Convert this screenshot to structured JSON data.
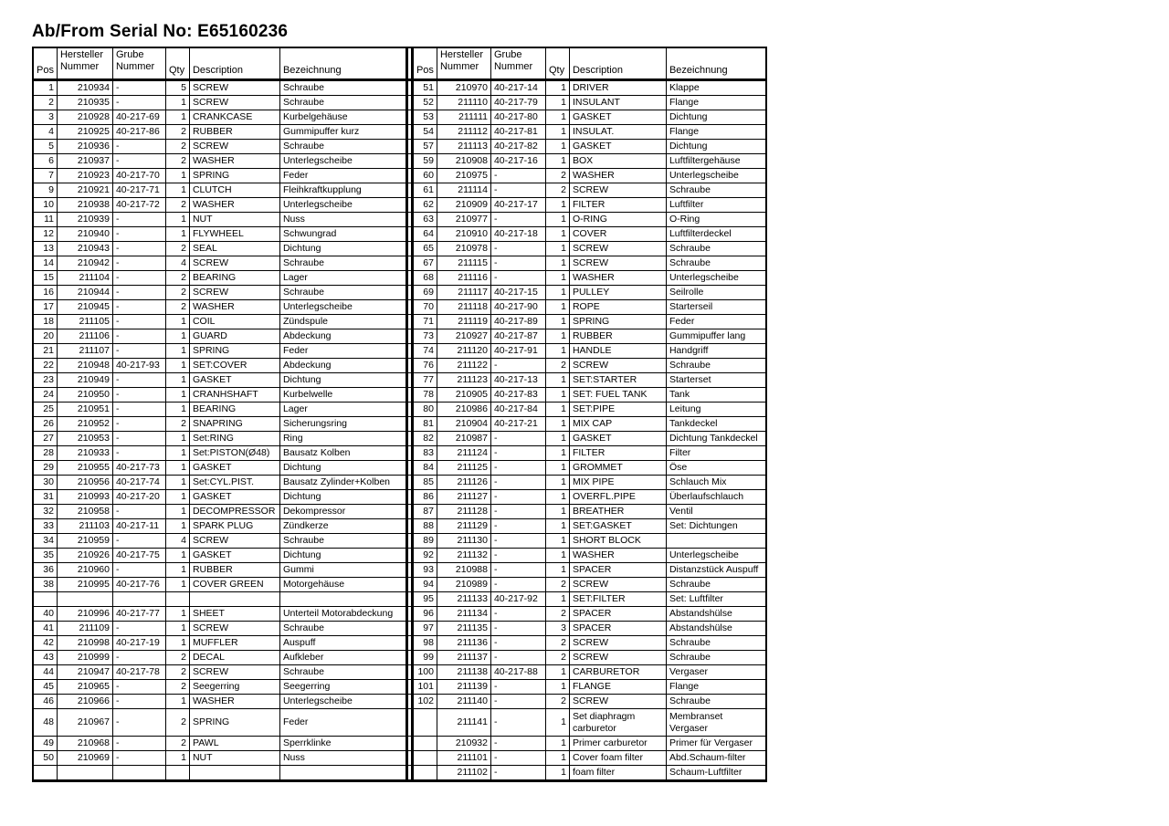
{
  "title": "Ab/From Serial No: E65160236",
  "colors": {
    "background": "#ffffff",
    "text": "#000000",
    "border": "#000000"
  },
  "table": {
    "headers": {
      "pos": "Pos",
      "hersteller": "Hersteller\nNummer",
      "grube": "Grube\nNummer",
      "qty": "Qty",
      "description": "Description",
      "bezeichnung": "Bezeichnung"
    },
    "tall_row_index": 43,
    "rows": [
      [
        "1",
        "210934",
        "-",
        "5",
        "SCREW",
        "Schraube",
        "51",
        "210970",
        "40-217-14",
        "1",
        "DRIVER",
        "Klappe"
      ],
      [
        "2",
        "210935",
        "-",
        "1",
        "SCREW",
        "Schraube",
        "52",
        "211110",
        "40-217-79",
        "1",
        "INSULANT",
        "Flange"
      ],
      [
        "3",
        "210928",
        "40-217-69",
        "1",
        "CRANKCASE",
        "Kurbelgehäuse",
        "53",
        "211111",
        "40-217-80",
        "1",
        "GASKET",
        "Dichtung"
      ],
      [
        "4",
        "210925",
        "40-217-86",
        "2",
        "RUBBER",
        "Gummipuffer kurz",
        "54",
        "211112",
        "40-217-81",
        "1",
        "INSULAT.",
        "Flange"
      ],
      [
        "5",
        "210936",
        "-",
        "2",
        "SCREW",
        "Schraube",
        "57",
        "211113",
        "40-217-82",
        "1",
        "GASKET",
        "Dichtung"
      ],
      [
        "6",
        "210937",
        "-",
        "2",
        "WASHER",
        "Unterlegscheibe",
        "59",
        "210908",
        "40-217-16",
        "1",
        "BOX",
        "Luftfiltergehäuse"
      ],
      [
        "7",
        "210923",
        "40-217-70",
        "1",
        "SPRING",
        "Feder",
        "60",
        "210975",
        "-",
        "2",
        "WASHER",
        "Unterlegscheibe"
      ],
      [
        "9",
        "210921",
        "40-217-71",
        "1",
        "CLUTCH",
        "Fleihkraftkupplung",
        "61",
        "211114",
        "-",
        "2",
        "SCREW",
        "Schraube"
      ],
      [
        "10",
        "210938",
        "40-217-72",
        "2",
        "WASHER",
        "Unterlegscheibe",
        "62",
        "210909",
        "40-217-17",
        "1",
        "FILTER",
        "Luftfilter"
      ],
      [
        "11",
        "210939",
        "-",
        "1",
        "NUT",
        "Nuss",
        "63",
        "210977",
        "-",
        "1",
        "O-RING",
        "O-Ring"
      ],
      [
        "12",
        "210940",
        "-",
        "1",
        "FLYWHEEL",
        "Schwungrad",
        "64",
        "210910",
        "40-217-18",
        "1",
        "COVER",
        "Luftfilterdeckel"
      ],
      [
        "13",
        "210943",
        "-",
        "2",
        "SEAL",
        "Dichtung",
        "65",
        "210978",
        "-",
        "1",
        "SCREW",
        "Schraube"
      ],
      [
        "14",
        "210942",
        "-",
        "4",
        "SCREW",
        "Schraube",
        "67",
        "211115",
        "-",
        "1",
        "SCREW",
        "Schraube"
      ],
      [
        "15",
        "211104",
        "-",
        "2",
        "BEARING",
        "Lager",
        "68",
        "211116",
        "-",
        "1",
        "WASHER",
        "Unterlegscheibe"
      ],
      [
        "16",
        "210944",
        "-",
        "2",
        "SCREW",
        "Schraube",
        "69",
        "211117",
        "40-217-15",
        "1",
        "PULLEY",
        "Seilrolle"
      ],
      [
        "17",
        "210945",
        "-",
        "2",
        "WASHER",
        "Unterlegscheibe",
        "70",
        "211118",
        "40-217-90",
        "1",
        "ROPE",
        "Starterseil"
      ],
      [
        "18",
        "211105",
        "-",
        "1",
        "COIL",
        "Zündspule",
        "71",
        "211119",
        "40-217-89",
        "1",
        "SPRING",
        "Feder"
      ],
      [
        "20",
        "211106",
        "-",
        "1",
        "GUARD",
        "Abdeckung",
        "73",
        "210927",
        "40-217-87",
        "1",
        "RUBBER",
        "Gummipuffer lang"
      ],
      [
        "21",
        "211107",
        "-",
        "1",
        "SPRING",
        "Feder",
        "74",
        "211120",
        "40-217-91",
        "1",
        "HANDLE",
        "Handgriff"
      ],
      [
        "22",
        "210948",
        "40-217-93",
        "1",
        "SET:COVER",
        "Abdeckung",
        "76",
        "211122",
        "-",
        "2",
        "SCREW",
        "Schraube"
      ],
      [
        "23",
        "210949",
        "-",
        "1",
        "GASKET",
        "Dichtung",
        "77",
        "211123",
        "40-217-13",
        "1",
        "SET:STARTER",
        "Starterset"
      ],
      [
        "24",
        "210950",
        "-",
        "1",
        "CRANHSHAFT",
        "Kurbelwelle",
        "78",
        "210905",
        "40-217-83",
        "1",
        "SET: FUEL TANK",
        "Tank"
      ],
      [
        "25",
        "210951",
        "-",
        "1",
        "BEARING",
        "Lager",
        "80",
        "210986",
        "40-217-84",
        "1",
        "SET:PIPE",
        "Leitung"
      ],
      [
        "26",
        "210952",
        "-",
        "2",
        "SNAPRING",
        "Sicherungsring",
        "81",
        "210904",
        "40-217-21",
        "1",
        "MIX CAP",
        "Tankdeckel"
      ],
      [
        "27",
        "210953",
        "-",
        "1",
        "Set:RING",
        "Ring",
        "82",
        "210987",
        "-",
        "1",
        "GASKET",
        "Dichtung Tankdeckel"
      ],
      [
        "28",
        "210933",
        "-",
        "1",
        "Set:PISTON(Ø48)",
        "Bausatz Kolben",
        "83",
        "211124",
        "-",
        "1",
        "FILTER",
        "Filter"
      ],
      [
        "29",
        "210955",
        "40-217-73",
        "1",
        "GASKET",
        "Dichtung",
        "84",
        "211125",
        "-",
        "1",
        "GROMMET",
        "Öse"
      ],
      [
        "30",
        "210956",
        "40-217-74",
        "1",
        "Set:CYL.PIST.",
        "Bausatz Zylinder+Kolben",
        "85",
        "211126",
        "-",
        "1",
        "MIX PIPE",
        "Schlauch Mix"
      ],
      [
        "31",
        "210993",
        "40-217-20",
        "1",
        "GASKET",
        "Dichtung",
        "86",
        "211127",
        "-",
        "1",
        "OVERFL.PIPE",
        "Überlaufschlauch"
      ],
      [
        "32",
        "210958",
        "-",
        "1",
        "DECOMPRESSOR",
        "Dekompressor",
        "87",
        "211128",
        "-",
        "1",
        "BREATHER",
        "Ventil"
      ],
      [
        "33",
        "211103",
        "40-217-11",
        "1",
        "SPARK PLUG",
        "Zündkerze",
        "88",
        "211129",
        "-",
        "1",
        "SET:GASKET",
        "Set: Dichtungen"
      ],
      [
        "34",
        "210959",
        "-",
        "4",
        "SCREW",
        "Schraube",
        "89",
        "211130",
        "-",
        "1",
        "SHORT BLOCK",
        ""
      ],
      [
        "35",
        "210926",
        "40-217-75",
        "1",
        "GASKET",
        "Dichtung",
        "92",
        "211132",
        "-",
        "1",
        "WASHER",
        "Unterlegscheibe"
      ],
      [
        "36",
        "210960",
        "-",
        "1",
        "RUBBER",
        "Gummi",
        "93",
        "210988",
        "-",
        "1",
        "SPACER",
        "Distanzstück Auspuff"
      ],
      [
        "38",
        "210995",
        "40-217-76",
        "1",
        "COVER GREEN",
        "Motorgehäuse",
        "94",
        "210989",
        "-",
        "2",
        "SCREW",
        "Schraube"
      ],
      [
        "",
        "",
        "",
        "",
        "",
        "",
        "95",
        "211133",
        "40-217-92",
        "1",
        "SET:FILTER",
        "Set: Luftfilter"
      ],
      [
        "40",
        "210996",
        "40-217-77",
        "1",
        "SHEET",
        "Unterteil Motorabdeckung",
        "96",
        "211134",
        "-",
        "2",
        "SPACER",
        "Abstandshülse"
      ],
      [
        "41",
        "211109",
        "-",
        "1",
        "SCREW",
        "Schraube",
        "97",
        "211135",
        "-",
        "3",
        "SPACER",
        "Abstandshülse"
      ],
      [
        "42",
        "210998",
        "40-217-19",
        "1",
        "MUFFLER",
        "Auspuff",
        "98",
        "211136",
        "-",
        "2",
        "SCREW",
        "Schraube"
      ],
      [
        "43",
        "210999",
        "-",
        "2",
        "DECAL",
        "Aufkleber",
        "99",
        "211137",
        "-",
        "2",
        "SCREW",
        "Schraube"
      ],
      [
        "44",
        "210947",
        "40-217-78",
        "2",
        "SCREW",
        "Schraube",
        "100",
        "211138",
        "40-217-88",
        "1",
        "CARBURETOR",
        "Vergaser"
      ],
      [
        "45",
        "210965",
        "-",
        "2",
        "Seegerring",
        "Seegerring",
        "101",
        "211139",
        "-",
        "1",
        "FLANGE",
        "Flange"
      ],
      [
        "46",
        "210966",
        "-",
        "1",
        "WASHER",
        "Unterlegscheibe",
        "102",
        "211140",
        "-",
        "2",
        "SCREW",
        "Schraube"
      ],
      [
        "48",
        "210967",
        "-",
        "2",
        "SPRING",
        "Feder",
        "",
        "211141",
        "-",
        "1",
        "Set diaphragm carburetor",
        "Membranset\n Vergaser"
      ],
      [
        "49",
        "210968",
        "-",
        "2",
        "PAWL",
        "Sperrklinke",
        "",
        "210932",
        "-",
        "1",
        "Primer carburetor",
        "Primer für Vergaser"
      ],
      [
        "50",
        "210969",
        "-",
        "1",
        "NUT",
        "Nuss",
        "",
        "211101",
        "-",
        "1",
        "Cover foam filter",
        "Abd.Schaum-filter"
      ],
      [
        "",
        "",
        "",
        "",
        "",
        "",
        "",
        "211102",
        "-",
        "1",
        "foam filter",
        "Schaum-Luftfilter"
      ]
    ]
  }
}
